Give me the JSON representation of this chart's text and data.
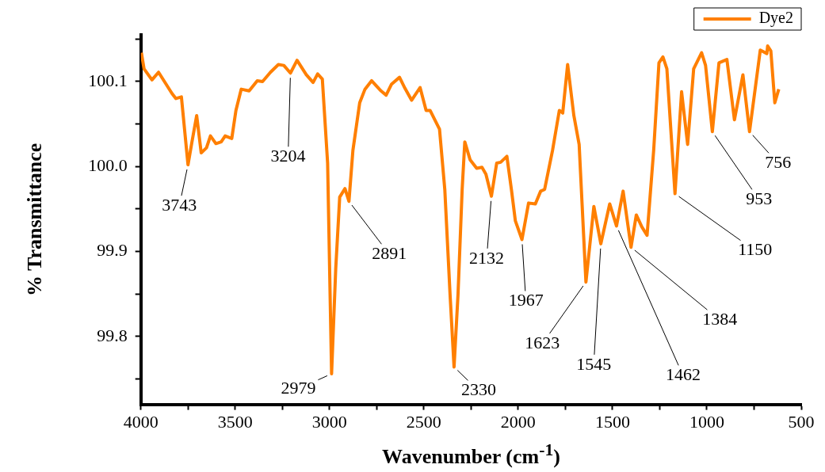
{
  "chart_data": {
    "type": "line",
    "xlabel": "Wavenumber (cm$^{-1}$)",
    "ylabel": "% Transmittance",
    "xlim": [
      4000,
      500
    ],
    "xticks": [
      4000,
      {
        "value": 3750,
        "label": null
      },
      3500,
      {
        "value": 3250,
        "label": null
      },
      3000,
      {
        "value": 2750,
        "label": null
      },
      2500,
      {
        "value": 2250,
        "label": null
      },
      2000,
      {
        "value": 1750,
        "label": null
      },
      1500,
      {
        "value": 1250,
        "label": null
      },
      1000,
      {
        "value": 750,
        "label": null
      },
      500
    ],
    "ylim": [
      99.72,
      100.155
    ],
    "yticks": [
      {
        "value": 99.75,
        "label": null
      },
      99.8,
      {
        "value": 99.85,
        "label": null
      },
      99.9,
      {
        "value": 99.95,
        "label": null
      },
      {
        "value": 100,
        "label": "100.0"
      },
      {
        "value": 100.05,
        "label": null
      },
      100.1,
      {
        "value": 100.15,
        "label": null
      }
    ],
    "legend": "top right",
    "marker": "none",
    "line_style": "solid",
    "x": [
      3997,
      3983,
      3941,
      3906,
      3835,
      3814,
      3785,
      3750,
      3729,
      3704,
      3680,
      3652,
      3631,
      3602,
      3574,
      3553,
      3518,
      3496,
      3468,
      3426,
      3383,
      3355,
      3313,
      3271,
      3242,
      3207,
      3172,
      3123,
      3087,
      3063,
      3038,
      3010,
      2989,
      2967,
      2946,
      2918,
      2897,
      2876,
      2840,
      2812,
      2777,
      2727,
      2700,
      2671,
      2629,
      2600,
      2565,
      2520,
      2488,
      2467,
      2417,
      2389,
      2361,
      2340,
      2319,
      2297,
      2283,
      2255,
      2220,
      2192,
      2171,
      2142,
      2114,
      2093,
      2060,
      2036,
      2015,
      1980,
      1945,
      1909,
      1881,
      1860,
      1818,
      1782,
      1764,
      1738,
      1705,
      1677,
      1641,
      1599,
      1562,
      1515,
      1479,
      1444,
      1402,
      1374,
      1345,
      1317,
      1282,
      1254,
      1233,
      1212,
      1169,
      1134,
      1102,
      1070,
      1028,
      1007,
      971,
      936,
      894,
      854,
      809,
      774,
      717,
      682,
      678,
      661,
      640,
      619
    ],
    "series": [
      {
        "name": "Dye2",
        "color": "#ff7f00",
        "values": [
          100.134,
          100.115,
          100.102,
          100.111,
          100.086,
          100.08,
          100.082,
          100.002,
          100.029,
          100.06,
          100.016,
          100.022,
          100.036,
          100.027,
          100.029,
          100.036,
          100.033,
          100.066,
          100.091,
          100.089,
          100.101,
          100.1,
          100.111,
          100.12,
          100.119,
          100.11,
          100.125,
          100.108,
          100.099,
          100.109,
          100.103,
          100.004,
          99.756,
          99.88,
          99.964,
          99.974,
          99.959,
          100.019,
          100.075,
          100.091,
          100.101,
          100.089,
          100.084,
          100.097,
          100.105,
          100.092,
          100.078,
          100.093,
          100.066,
          100.066,
          100.044,
          99.973,
          99.849,
          99.764,
          99.849,
          99.973,
          100.029,
          100.008,
          99.998,
          99.999,
          99.991,
          99.965,
          100.004,
          100.005,
          100.012,
          99.973,
          99.936,
          99.914,
          99.957,
          99.956,
          99.971,
          99.973,
          100.019,
          100.066,
          100.063,
          100.12,
          100.06,
          100.026,
          99.864,
          99.953,
          99.909,
          99.956,
          99.93,
          99.971,
          99.905,
          99.943,
          99.929,
          99.919,
          100.019,
          100.122,
          100.129,
          100.115,
          99.968,
          100.088,
          100.026,
          100.115,
          100.134,
          100.119,
          100.041,
          100.122,
          100.126,
          100.055,
          100.108,
          100.041,
          100.137,
          100.133,
          100.142,
          100.136,
          100.075,
          100.091
        ]
      }
    ],
    "annotations": [
      {
        "text": "3743",
        "x": 3750,
        "y": 100.002
      },
      {
        "text": "3204",
        "x": 3207,
        "y": 100.11
      },
      {
        "text": "2979",
        "x": 2989,
        "y": 99.756
      },
      {
        "text": "2891",
        "x": 2897,
        "y": 99.959
      },
      {
        "text": "2330",
        "x": 2340,
        "y": 99.764
      },
      {
        "text": "2132",
        "x": 2142,
        "y": 99.965
      },
      {
        "text": "1967",
        "x": 1980,
        "y": 99.914
      },
      {
        "text": "1623",
        "x": 1641,
        "y": 99.864
      },
      {
        "text": "1545",
        "x": 1562,
        "y": 99.909
      },
      {
        "text": "1462",
        "x": 1479,
        "y": 99.93
      },
      {
        "text": "1384",
        "x": 1402,
        "y": 99.905
      },
      {
        "text": "1150",
        "x": 1169,
        "y": 99.968
      },
      {
        "text": "953",
        "x": 971,
        "y": 100.041
      },
      {
        "text": "756",
        "x": 774,
        "y": 100.041
      }
    ]
  }
}
